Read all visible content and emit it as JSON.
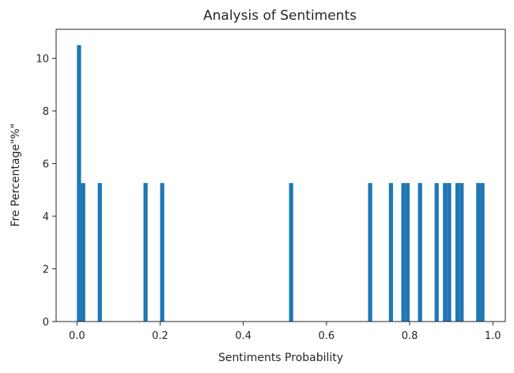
{
  "chart_data": {
    "type": "bar",
    "title": "Analysis of Sentiments",
    "xlabel": "Sentiments Probability",
    "ylabel": "Fre Percentage\"%\"",
    "xlim": [
      -0.05,
      1.03
    ],
    "ylim": [
      0,
      11.1
    ],
    "xticks": [
      0.0,
      0.2,
      0.4,
      0.6,
      0.8,
      1.0
    ],
    "xtick_labels": [
      "0.0",
      "0.2",
      "0.4",
      "0.6",
      "0.8",
      "1.0"
    ],
    "yticks": [
      0,
      2,
      4,
      6,
      8,
      10
    ],
    "ytick_labels": [
      "0",
      "2",
      "4",
      "6",
      "8",
      "10"
    ],
    "bar_width": 0.01,
    "bar_color": "#1f77b4",
    "grid": false,
    "bars": [
      {
        "x": 0.0,
        "y": 10.5
      },
      {
        "x": 0.01,
        "y": 5.26
      },
      {
        "x": 0.05,
        "y": 5.26
      },
      {
        "x": 0.16,
        "y": 5.26
      },
      {
        "x": 0.2,
        "y": 5.26
      },
      {
        "x": 0.51,
        "y": 5.26
      },
      {
        "x": 0.7,
        "y": 5.26
      },
      {
        "x": 0.75,
        "y": 5.26
      },
      {
        "x": 0.78,
        "y": 5.26
      },
      {
        "x": 0.79,
        "y": 5.26
      },
      {
        "x": 0.82,
        "y": 5.26
      },
      {
        "x": 0.86,
        "y": 5.26
      },
      {
        "x": 0.88,
        "y": 5.26
      },
      {
        "x": 0.89,
        "y": 5.26
      },
      {
        "x": 0.91,
        "y": 5.26
      },
      {
        "x": 0.92,
        "y": 5.26
      },
      {
        "x": 0.96,
        "y": 5.26
      },
      {
        "x": 0.97,
        "y": 5.26
      }
    ]
  }
}
